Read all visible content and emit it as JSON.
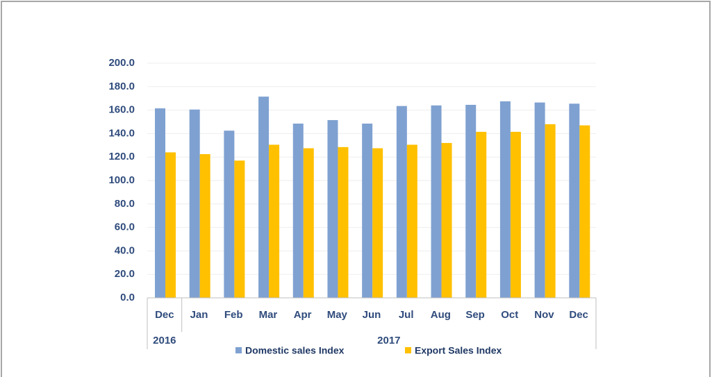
{
  "chart_data": {
    "type": "bar",
    "categories": [
      "Dec",
      "Jan",
      "Feb",
      "Mar",
      "Apr",
      "May",
      "Jun",
      "Jul",
      "Aug",
      "Sep",
      "Oct",
      "Nov",
      "Dec"
    ],
    "groups": [
      {
        "label": "2016",
        "span": 1
      },
      {
        "label": "2017",
        "span": 12
      }
    ],
    "series": [
      {
        "name": "Domestic sales Index",
        "color": "#7fa1d1",
        "values": [
          161.5,
          160.5,
          142.5,
          171.5,
          148.5,
          151.5,
          148.5,
          163.5,
          164,
          164.5,
          167.5,
          166.5,
          165.5
        ]
      },
      {
        "name": "Export Sales Index",
        "color": "#ffc000",
        "values": [
          124,
          122.5,
          117,
          130.5,
          127.5,
          128.5,
          127.5,
          130.5,
          132,
          141.5,
          141.5,
          148,
          147
        ]
      }
    ],
    "ylim": [
      0,
      200
    ],
    "yticks": [
      {
        "value": 0,
        "label": "0.0"
      },
      {
        "value": 20,
        "label": "20.0"
      },
      {
        "value": 40,
        "label": "40.0"
      },
      {
        "value": 60,
        "label": "60.0"
      },
      {
        "value": 80,
        "label": "80.0"
      },
      {
        "value": 100,
        "label": "100.0"
      },
      {
        "value": 120,
        "label": "120.0"
      },
      {
        "value": 140,
        "label": "140.0"
      },
      {
        "value": 160,
        "label": "160.0"
      },
      {
        "value": 180,
        "label": "180.0"
      },
      {
        "value": 200,
        "label": "200.0"
      }
    ],
    "grid": true,
    "legend": "bottom"
  }
}
